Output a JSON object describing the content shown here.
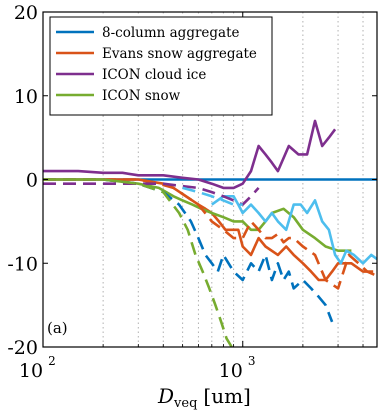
{
  "chart_data": {
    "type": "line",
    "title": "",
    "xlabel": {
      "symbol": "D",
      "subscript": "veq",
      "unit": "[um]"
    },
    "ylabel": "",
    "xscale": "log",
    "xlim": [
      100,
      4700
    ],
    "ylim": [
      -20,
      20
    ],
    "yticks": [
      "20",
      "10",
      "0",
      "-10",
      "-20"
    ],
    "xticks": [
      {
        "value": 100,
        "base": "10",
        "exp": "2"
      },
      {
        "value": 1000,
        "base": "10",
        "exp": "3"
      }
    ],
    "grid": "vertical minor dotted",
    "legend_position": "top-left",
    "panel_label": "(a)",
    "series": [
      {
        "name": "8-column aggregate",
        "color": "#0072bd",
        "dash": "solid",
        "x": [
          100,
          4700
        ],
        "y": [
          0,
          0
        ]
      },
      {
        "name": "Evans snow aggregate",
        "color": "#d95319",
        "dash": "solid",
        "x": [
          100,
          180,
          300,
          400,
          450,
          520,
          600,
          650,
          700,
          760,
          820,
          880,
          950,
          1000,
          1100,
          1200,
          1300,
          1500,
          1650,
          1800,
          2000,
          2200,
          2400,
          2600,
          2800,
          3000,
          3200,
          3500,
          4000,
          4500
        ],
        "y": [
          0,
          0,
          0,
          -0.5,
          -1,
          -2,
          -3,
          -3.5,
          -4,
          -5,
          -6,
          -6,
          -6,
          -8,
          -9,
          -7,
          -8,
          -9,
          -8,
          -9,
          -10,
          -11,
          -12,
          -12,
          -11,
          -10,
          -10,
          -10,
          -11,
          -11
        ]
      },
      {
        "name": "ICON cloud ice",
        "color": "#7e2f8e",
        "dash": "solid",
        "x": [
          100,
          150,
          200,
          250,
          300,
          350,
          400,
          500,
          600,
          700,
          800,
          900,
          1000,
          1100,
          1200,
          1300,
          1400,
          1500,
          1700,
          1900,
          2100,
          2300,
          2500,
          2700,
          2900
        ],
        "y": [
          1,
          1,
          0.8,
          0.8,
          0.5,
          0.5,
          0.5,
          0.2,
          0,
          -0.5,
          -1,
          -1,
          -0.5,
          1,
          4,
          3,
          2,
          1,
          4,
          3,
          3,
          7,
          4,
          5,
          6
        ]
      },
      {
        "name": "ICON snow",
        "color": "#77ac30",
        "dash": "solid",
        "x": [
          100,
          200,
          300,
          380,
          450,
          500,
          560,
          620,
          700,
          800,
          900,
          1000,
          1100,
          1200,
          1300,
          1400,
          1600,
          1800,
          2000,
          2300,
          2600,
          3000,
          3500
        ],
        "y": [
          0,
          0,
          -0.5,
          -1,
          -2,
          -2.5,
          -3,
          -3.5,
          -4,
          -4.5,
          -5,
          -5,
          -6,
          -6,
          -5,
          -4,
          -3.5,
          -4.5,
          -6,
          -7,
          -8,
          -8.5,
          -8.5
        ]
      },
      {
        "name": "",
        "color": "#4dbeee",
        "dash": "solid",
        "x": [
          700,
          800,
          900,
          950,
          1000,
          1100,
          1200,
          1300,
          1400,
          1500,
          1650,
          1800,
          1950,
          2100,
          2300,
          2500,
          2700,
          2900,
          3100,
          3300,
          3600,
          4000,
          4400,
          4700
        ],
        "y": [
          -3,
          -2,
          -2,
          -3,
          -4,
          -3,
          -4,
          -5,
          -4,
          -5,
          -6,
          -3,
          -3,
          -4,
          -2.5,
          -5,
          -6,
          -9,
          -10,
          -8.5,
          -9,
          -10,
          -9,
          -9.5
        ]
      },
      {
        "name": "",
        "color": "#0072bd",
        "dash": "dashed",
        "x": [
          100,
          200,
          300,
          400,
          480,
          550,
          600,
          650,
          700,
          750,
          800,
          900,
          1000,
          1100,
          1200,
          1300,
          1400,
          1500,
          1600,
          1700,
          1800,
          2000,
          2200,
          2400,
          2600,
          2800
        ],
        "y": [
          0,
          0,
          -0.5,
          -1.5,
          -3,
          -5,
          -7,
          -9,
          -10,
          -11,
          -9,
          -11,
          -12,
          -10,
          -11,
          -9,
          -12,
          -10,
          -12,
          -11,
          -13,
          -12,
          -13,
          -14,
          -15,
          -17
        ]
      },
      {
        "name": "",
        "color": "#d95319",
        "dash": "dashed",
        "x": [
          100,
          200,
          300,
          380,
          450,
          520,
          600,
          700,
          800,
          900,
          1000,
          1100,
          1200,
          1300,
          1400,
          1500,
          1600,
          1700,
          1800,
          2000,
          2300,
          2600,
          3000,
          3400,
          3800,
          4200,
          4700
        ],
        "y": [
          0,
          0,
          0,
          -0.5,
          -1,
          -2,
          -3,
          -5,
          -6,
          -7,
          -7,
          -5,
          -6,
          -7,
          -7,
          -6.5,
          -7.5,
          -7,
          -7,
          -8,
          -9,
          -12,
          -13,
          -9,
          -10,
          -11,
          -11.5
        ]
      },
      {
        "name": "",
        "color": "#7e2f8e",
        "dash": "dashed",
        "x": [
          100,
          200,
          300,
          400,
          500,
          600,
          700,
          800,
          900,
          1000,
          1100,
          1200
        ],
        "y": [
          -0.5,
          -0.5,
          -0.5,
          -0.5,
          -0.8,
          -1,
          -1.5,
          -2,
          -2.5,
          -3,
          -2,
          -1
        ]
      },
      {
        "name": "",
        "color": "#77ac30",
        "dash": "dashed",
        "x": [
          100,
          200,
          300,
          400,
          480,
          530,
          580,
          630,
          680,
          730,
          780,
          830,
          880
        ],
        "y": [
          0,
          0,
          -0.5,
          -1.5,
          -4,
          -6,
          -9,
          -11,
          -13,
          -15,
          -17,
          -19,
          -20
        ]
      },
      {
        "name": "",
        "color": "#4dbeee",
        "dash": "dashed",
        "x": [
          500,
          600,
          700,
          800,
          900,
          1000
        ],
        "y": [
          -1,
          -1.5,
          -2,
          -2.5,
          -3,
          -3
        ]
      }
    ]
  }
}
